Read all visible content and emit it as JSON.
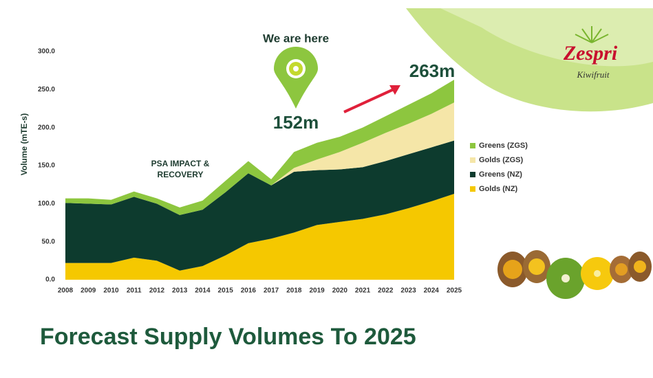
{
  "chart_data": {
    "type": "stacked_area",
    "title": "Forecast Supply Volumes To 2025",
    "y_label": "Volume (mTE-s)",
    "annotations": [
      "We are here",
      "152m",
      "263m",
      "PSA IMPACT &",
      "RECOVERY"
    ],
    "brand": "Zespri",
    "brand_subtitle": "Kiwifruit",
    "categories": [
      "2008",
      "2009",
      "2010",
      "2011",
      "2012",
      "2013",
      "2014",
      "2015",
      "2016",
      "2017",
      "2018",
      "2019",
      "2020",
      "2021",
      "2022",
      "2023",
      "2024",
      "2025"
    ],
    "series": [
      {
        "name": "Golds (NZ)",
        "color": "#f5c800",
        "values": [
          22,
          22,
          22,
          29,
          25,
          12,
          18,
          32,
          48,
          54,
          62,
          72,
          76,
          80,
          86,
          94,
          103,
          113
        ]
      },
      {
        "name": "Greens (NZ)",
        "color": "#0d3b2e",
        "values": [
          79,
          78,
          77,
          80,
          75,
          73,
          74,
          83,
          92,
          70,
          80,
          72,
          69,
          68,
          70,
          71,
          71,
          70
        ]
      },
      {
        "name": "Golds (ZGS)",
        "color": "#f5e6a8",
        "values": [
          0,
          0,
          0,
          0,
          0,
          0,
          0,
          0,
          0,
          0,
          5,
          14,
          23,
          32,
          37,
          40,
          44,
          50
        ]
      },
      {
        "name": "Greens (ZGS)",
        "color": "#8dc63f",
        "values": [
          6,
          7,
          6,
          7,
          7,
          10,
          12,
          15,
          16,
          8,
          21,
          22,
          20,
          20,
          22,
          25,
          27,
          30
        ]
      }
    ],
    "ylim": [
      0,
      300
    ],
    "yticks": [
      {
        "value": 0,
        "label": "0.0"
      },
      {
        "value": 50,
        "label": "50.0"
      },
      {
        "value": 100,
        "label": "100.0"
      },
      {
        "value": 150,
        "label": "150.0"
      },
      {
        "value": 200,
        "label": "200.0"
      },
      {
        "value": 250,
        "label": "250.0"
      },
      {
        "value": 300,
        "label": "300.0"
      }
    ]
  }
}
